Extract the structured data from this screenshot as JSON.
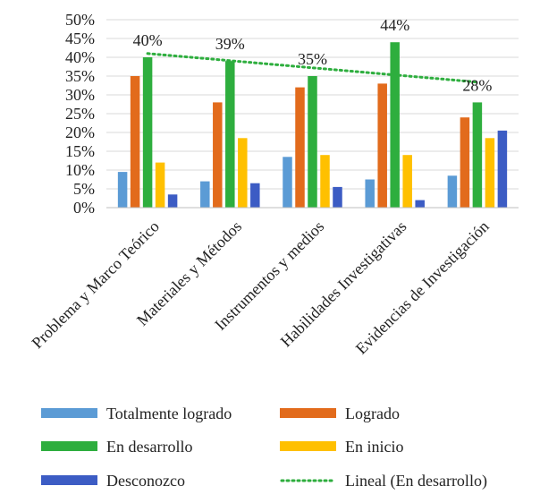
{
  "chart_data": {
    "type": "bar",
    "categories": [
      "Problema y Marco Teórico",
      "Materiales y Métodos",
      "Instrumentos y medios",
      "Habilidades Investigativas",
      "Evidencias de Investigación"
    ],
    "series": [
      {
        "name": "Totalmente logrado",
        "color": "#5B9BD5",
        "values": [
          9.5,
          7,
          13.5,
          7.5,
          8.5
        ]
      },
      {
        "name": "Logrado",
        "color": "#E26B1C",
        "values": [
          35,
          28,
          32,
          33,
          24
        ]
      },
      {
        "name": "En desarrollo",
        "color": "#2EAE3E",
        "values": [
          40,
          39,
          35,
          44,
          28
        ]
      },
      {
        "name": "En inicio",
        "color": "#FFC000",
        "values": [
          12,
          18.5,
          14,
          14,
          18.5
        ]
      },
      {
        "name": "Desconozco",
        "color": "#3C5CC4",
        "values": [
          3.5,
          6.5,
          5.5,
          2,
          20.5
        ]
      }
    ],
    "data_labels": {
      "series": "En desarrollo",
      "labels": [
        "40%",
        "39%",
        "35%",
        "44%",
        "28%"
      ]
    },
    "trendline": {
      "name": "Lineal (En desarrollo)",
      "of_series": "En desarrollo",
      "type": "linear",
      "color": "#2EAE3E",
      "style": "dotted"
    },
    "yaxis": {
      "ylim": [
        0,
        50
      ],
      "ticks": [
        0,
        5,
        10,
        15,
        20,
        25,
        30,
        35,
        40,
        45,
        50
      ],
      "tick_labels": [
        "0%",
        "5%",
        "10%",
        "15%",
        "20%",
        "25%",
        "30%",
        "35%",
        "40%",
        "45%",
        "50%"
      ]
    },
    "grid": true,
    "legend_position": "bottom",
    "title": "",
    "xlabel": "",
    "ylabel": ""
  }
}
